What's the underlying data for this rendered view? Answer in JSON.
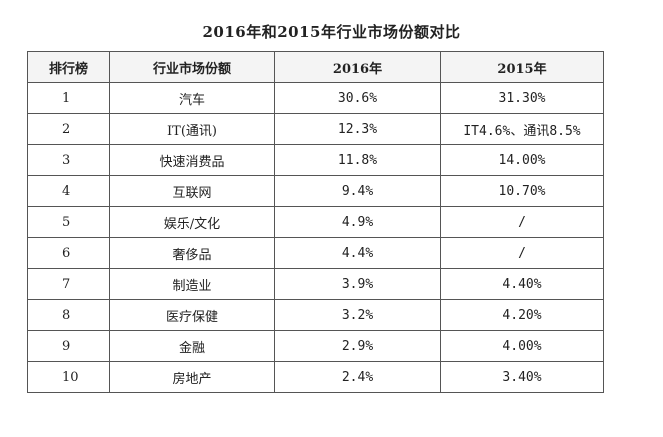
{
  "title": "2016年和2015年行业市场份额对比",
  "table": {
    "headers": {
      "rank": "排行榜",
      "industry": "行业市场份额",
      "y2016": "2016年",
      "y2015": "2015年"
    },
    "rows": [
      {
        "rank": "1",
        "industry": "汽车",
        "y2016": "30.6%",
        "y2015": "31.30%"
      },
      {
        "rank": "2",
        "industry": "IT(通讯)",
        "y2016": "12.3%",
        "y2015": "IT4.6%、通讯8.5%"
      },
      {
        "rank": "3",
        "industry": "快速消费品",
        "y2016": "11.8%",
        "y2015": "14.00%"
      },
      {
        "rank": "4",
        "industry": "互联网",
        "y2016": "9.4%",
        "y2015": "10.70%"
      },
      {
        "rank": "5",
        "industry": "娱乐/文化",
        "y2016": "4.9%",
        "y2015": "/"
      },
      {
        "rank": "6",
        "industry": "奢侈品",
        "y2016": "4.4%",
        "y2015": "/"
      },
      {
        "rank": "7",
        "industry": "制造业",
        "y2016": "3.9%",
        "y2015": "4.40%"
      },
      {
        "rank": "8",
        "industry": "医疗保健",
        "y2016": "3.2%",
        "y2015": "4.20%"
      },
      {
        "rank": "9",
        "industry": "金融",
        "y2016": "2.9%",
        "y2015": "4.00%"
      },
      {
        "rank": "10",
        "industry": "房地产",
        "y2016": "2.4%",
        "y2015": "3.40%"
      }
    ]
  }
}
